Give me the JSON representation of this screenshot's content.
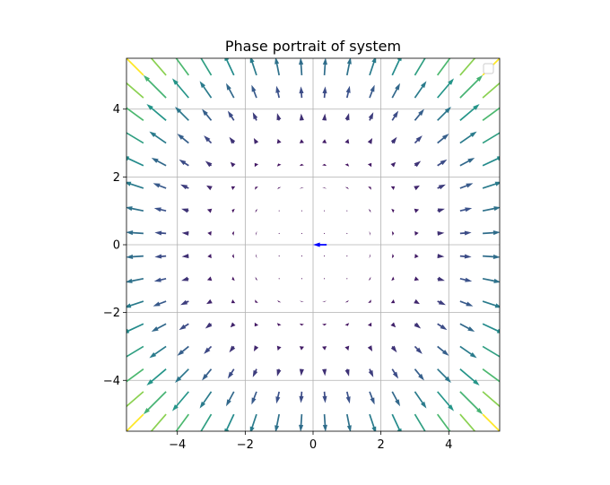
{
  "chart_data": {
    "type": "quiver",
    "title": "Phase portrait of system",
    "xlabel": "",
    "ylabel": "",
    "xlim": [
      -5.5,
      5.5
    ],
    "ylim": [
      -5.5,
      5.5
    ],
    "xticks": [
      -4,
      -2,
      0,
      2,
      4
    ],
    "yticks": [
      -4,
      -2,
      0,
      2,
      4
    ],
    "xtick_labels": [
      "−4",
      "−2",
      "0",
      "2",
      "4"
    ],
    "ytick_labels": [
      "−4",
      "−2",
      "0",
      "2",
      "4"
    ],
    "grid": true,
    "legend_location": "upper right",
    "legend_entries": [],
    "field": {
      "x_range": [
        -5,
        5
      ],
      "y_range": [
        -5,
        5
      ],
      "n": 16,
      "description_u": "x*(x^2+y^2)",
      "description_v": "y*(x^2+y^2)"
    },
    "colormap": [
      "#440154",
      "#3b528b",
      "#21918c",
      "#5ec962",
      "#fde725"
    ],
    "highlight_vector": {
      "x": 0.4,
      "y": 0,
      "u": -0.4,
      "v": 0,
      "color": "#0000ff"
    }
  }
}
